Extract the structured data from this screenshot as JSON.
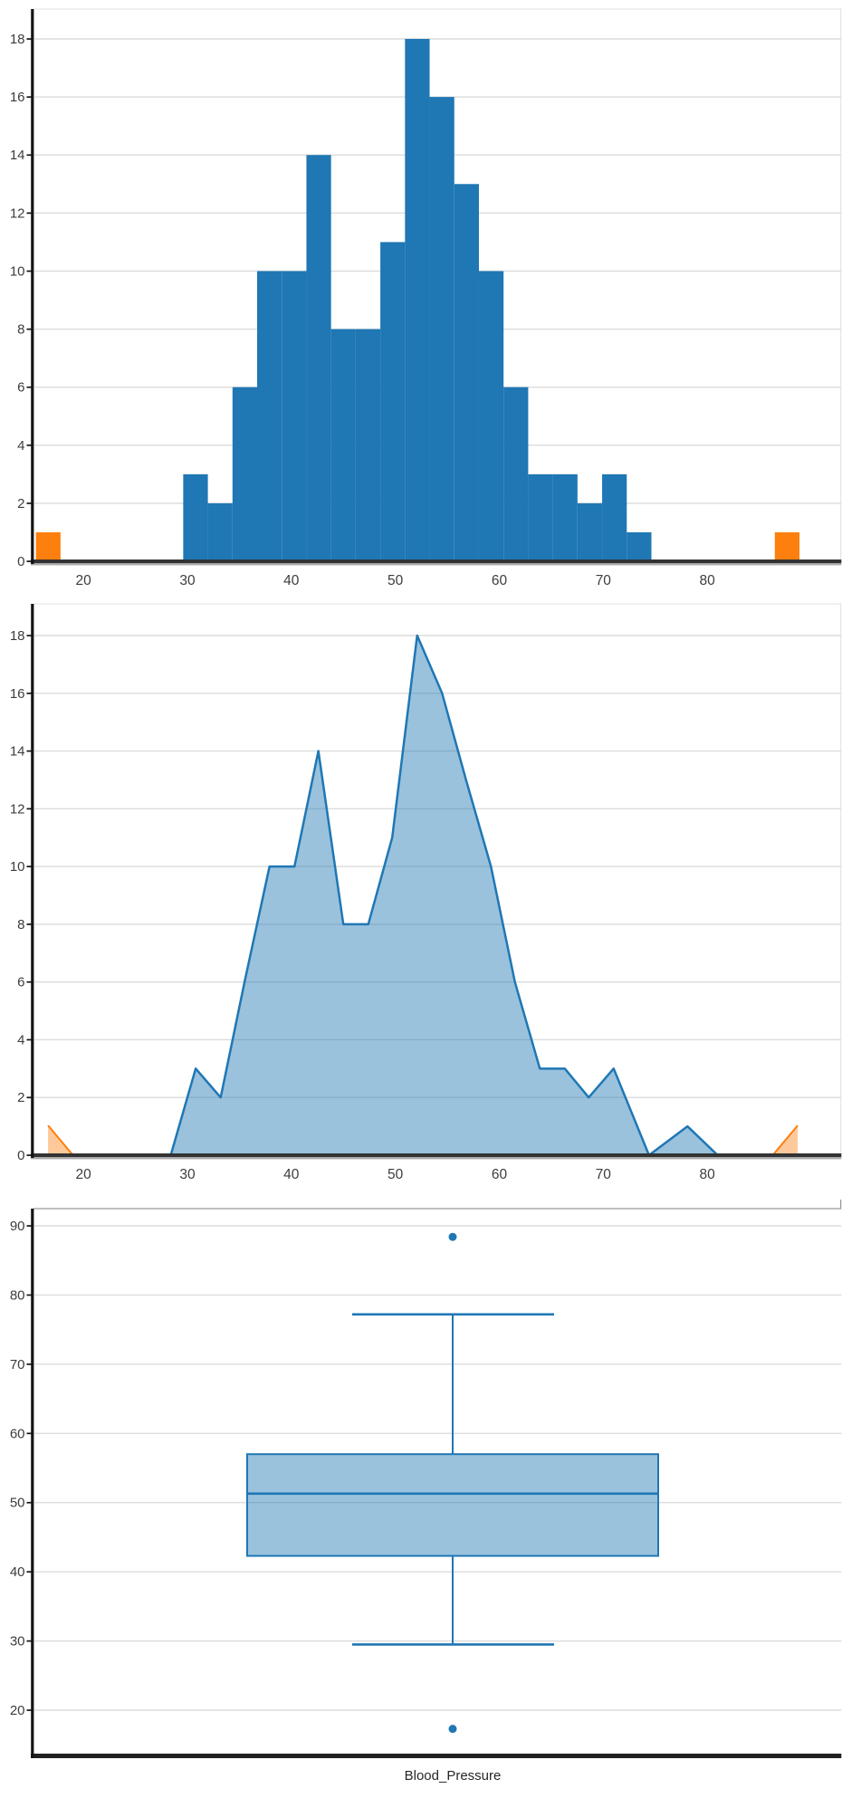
{
  "colors": {
    "blue": "#1f77b4",
    "orange": "#fd7f0e",
    "blue_fill": "rgba(31,119,180,0.45)",
    "orange_fill": "rgba(253,127,14,0.42)",
    "grid": "#dcdcdc",
    "spine": "#141414",
    "axis_band_dark": "#333333",
    "axis_band_light": "#ababab",
    "tick_text": "#3d3d3d",
    "border_light": "#e6e6e6",
    "border_mid": "#9a9a9a"
  },
  "chart_data": [
    {
      "type": "bar",
      "name": "histogram",
      "title": "",
      "xlabel": "",
      "ylabel": "",
      "xlim": [
        15.2,
        92.9
      ],
      "ylim": [
        0,
        19.05
      ],
      "x_ticks": [
        20,
        30,
        40,
        50,
        60,
        70,
        80
      ],
      "y_ticks": [
        0,
        2,
        4,
        6,
        8,
        10,
        12,
        14,
        16,
        18
      ],
      "grid": "horizontal-only",
      "bin_width": 2.37,
      "series": [
        {
          "name": "Blood_Pressure frequency",
          "role": "main",
          "color_key": "blue",
          "bin_start": 29.6,
          "counts": [
            3,
            2,
            6,
            10,
            10,
            14,
            8,
            8,
            11,
            18,
            16,
            13,
            10,
            6,
            3,
            3,
            2,
            3,
            1
          ]
        },
        {
          "name": "outlier bins",
          "role": "outliers",
          "color_key": "orange",
          "bins": [
            {
              "start": 15.43,
              "count": 1
            },
            {
              "start": 86.5,
              "count": 1
            }
          ]
        }
      ]
    },
    {
      "type": "area",
      "name": "frequency_polygon",
      "title": "",
      "xlabel": "",
      "ylabel": "",
      "xlim": [
        15.2,
        92.9
      ],
      "ylim": [
        0,
        19.05
      ],
      "x_ticks": [
        20,
        30,
        40,
        50,
        60,
        70,
        80
      ],
      "y_ticks": [
        0,
        2,
        4,
        6,
        8,
        10,
        12,
        14,
        16,
        18
      ],
      "grid": "horizontal-only",
      "series": [
        {
          "name": "Blood_Pressure frequency polygon",
          "role": "main",
          "stroke_key": "blue",
          "fill_key": "blue_fill",
          "stroke_width": 2.5,
          "points": [
            [
              28.4,
              0
            ],
            [
              30.8,
              3
            ],
            [
              33.2,
              2
            ],
            [
              35.5,
              6
            ],
            [
              37.9,
              10
            ],
            [
              40.3,
              10
            ],
            [
              42.6,
              14
            ],
            [
              45,
              8
            ],
            [
              47.4,
              8
            ],
            [
              49.7,
              11
            ],
            [
              52.1,
              18
            ],
            [
              54.5,
              16
            ],
            [
              56.8,
              13
            ],
            [
              59.2,
              10
            ],
            [
              61.5,
              6
            ],
            [
              63.9,
              3
            ],
            [
              66.3,
              3
            ],
            [
              68.6,
              2
            ],
            [
              71,
              3
            ],
            [
              74.4,
              0
            ],
            [
              78.1,
              1
            ],
            [
              81,
              0
            ]
          ]
        },
        {
          "name": "outlier tails",
          "role": "outliers",
          "stroke_key": "orange",
          "fill_key": "orange_fill",
          "stroke_width": 2,
          "points": [
            [
              16.6,
              1.03
            ],
            [
              19,
              0
            ],
            [
              86.3,
              0
            ],
            [
              88.7,
              1.03
            ]
          ]
        }
      ]
    },
    {
      "type": "box",
      "name": "boxplot",
      "title": "",
      "xlabel": "Blood_Pressure",
      "ylabel": "",
      "ylim": [
        13.5,
        92.5
      ],
      "y_ticks": [
        20,
        30,
        40,
        50,
        60,
        70,
        80,
        90
      ],
      "grid": "horizontal-only",
      "categories": [
        "Blood_Pressure"
      ],
      "boxes": [
        {
          "label": "Blood_Pressure",
          "q1": 42.3,
          "median": 51.3,
          "q3": 57.0,
          "whisker_low": 29.5,
          "whisker_high": 77.2,
          "outliers": [
            17.3,
            88.4
          ]
        }
      ],
      "style": {
        "fill_key": "blue_fill",
        "edge_key": "blue"
      }
    }
  ]
}
